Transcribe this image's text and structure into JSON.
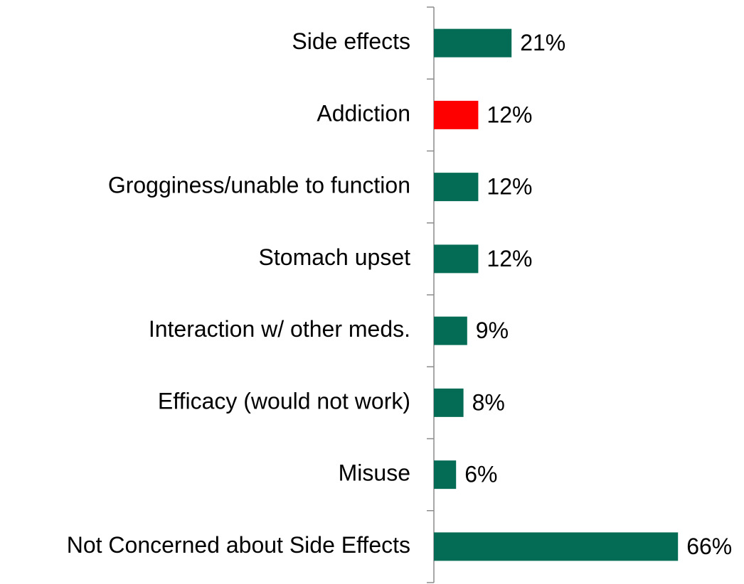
{
  "chart_data": {
    "type": "barh",
    "categories": [
      "Side effects",
      "Addiction",
      "Grogginess/unable to function",
      "Stomach upset",
      "Interaction w/ other meds.",
      "Efficacy (would not work)",
      "Misuse",
      "Not Concerned about Side Effects"
    ],
    "values": [
      21,
      12,
      12,
      12,
      9,
      8,
      6,
      66
    ],
    "value_labels": [
      "21%",
      "12%",
      "12%",
      "12%",
      "9%",
      "8%",
      "6%",
      "66%"
    ],
    "colors": [
      "#046b54",
      "#ff0000",
      "#046b54",
      "#046b54",
      "#046b54",
      "#046b54",
      "#046b54",
      "#046b54"
    ]
  }
}
